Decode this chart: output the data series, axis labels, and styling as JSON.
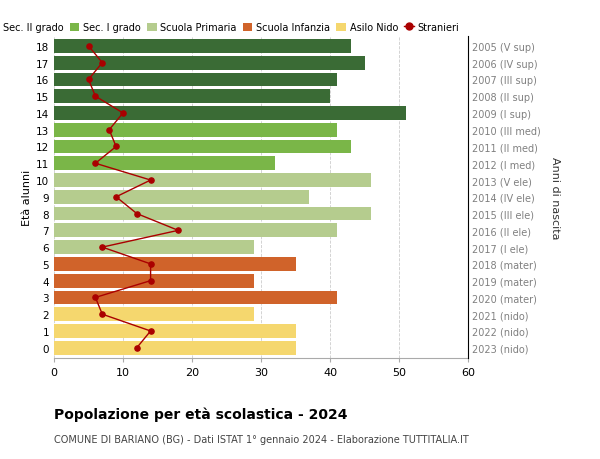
{
  "ages": [
    18,
    17,
    16,
    15,
    14,
    13,
    12,
    11,
    10,
    9,
    8,
    7,
    6,
    5,
    4,
    3,
    2,
    1,
    0
  ],
  "years": [
    "2005 (V sup)",
    "2006 (IV sup)",
    "2007 (III sup)",
    "2008 (II sup)",
    "2009 (I sup)",
    "2010 (III med)",
    "2011 (II med)",
    "2012 (I med)",
    "2013 (V ele)",
    "2014 (IV ele)",
    "2015 (III ele)",
    "2016 (II ele)",
    "2017 (I ele)",
    "2018 (mater)",
    "2019 (mater)",
    "2020 (mater)",
    "2021 (nido)",
    "2022 (nido)",
    "2023 (nido)"
  ],
  "bar_values": [
    43,
    45,
    41,
    40,
    51,
    41,
    43,
    32,
    46,
    37,
    46,
    41,
    29,
    35,
    29,
    41,
    29,
    35,
    35
  ],
  "bar_colors": [
    "#3a6b35",
    "#3a6b35",
    "#3a6b35",
    "#3a6b35",
    "#3a6b35",
    "#7ab648",
    "#7ab648",
    "#7ab648",
    "#b5cc8e",
    "#b5cc8e",
    "#b5cc8e",
    "#b5cc8e",
    "#b5cc8e",
    "#d0632a",
    "#d0632a",
    "#d0632a",
    "#f5d76e",
    "#f5d76e",
    "#f5d76e"
  ],
  "stranieri": [
    5,
    7,
    5,
    6,
    10,
    8,
    9,
    6,
    14,
    9,
    12,
    18,
    7,
    14,
    14,
    6,
    7,
    14,
    12
  ],
  "ylabel": "Età alunni",
  "ylabel2": "Anni di nascita",
  "title": "Popolazione per età scolastica - 2024",
  "subtitle": "COMUNE DI BARIANO (BG) - Dati ISTAT 1° gennaio 2024 - Elaborazione TUTTITALIA.IT",
  "xlim": [
    0,
    60
  ],
  "xticks": [
    0,
    10,
    20,
    30,
    40,
    50,
    60
  ],
  "legend_labels": [
    "Sec. II grado",
    "Sec. I grado",
    "Scuola Primaria",
    "Scuola Infanzia",
    "Asilo Nido",
    "Stranieri"
  ],
  "legend_colors": [
    "#3a6b35",
    "#7ab648",
    "#b5cc8e",
    "#d0632a",
    "#f5d76e",
    "#aa0000"
  ],
  "bg_color": "#ffffff",
  "grid_color": "#cccccc",
  "year_label_color": "#808080",
  "stranieri_color": "#aa0000"
}
